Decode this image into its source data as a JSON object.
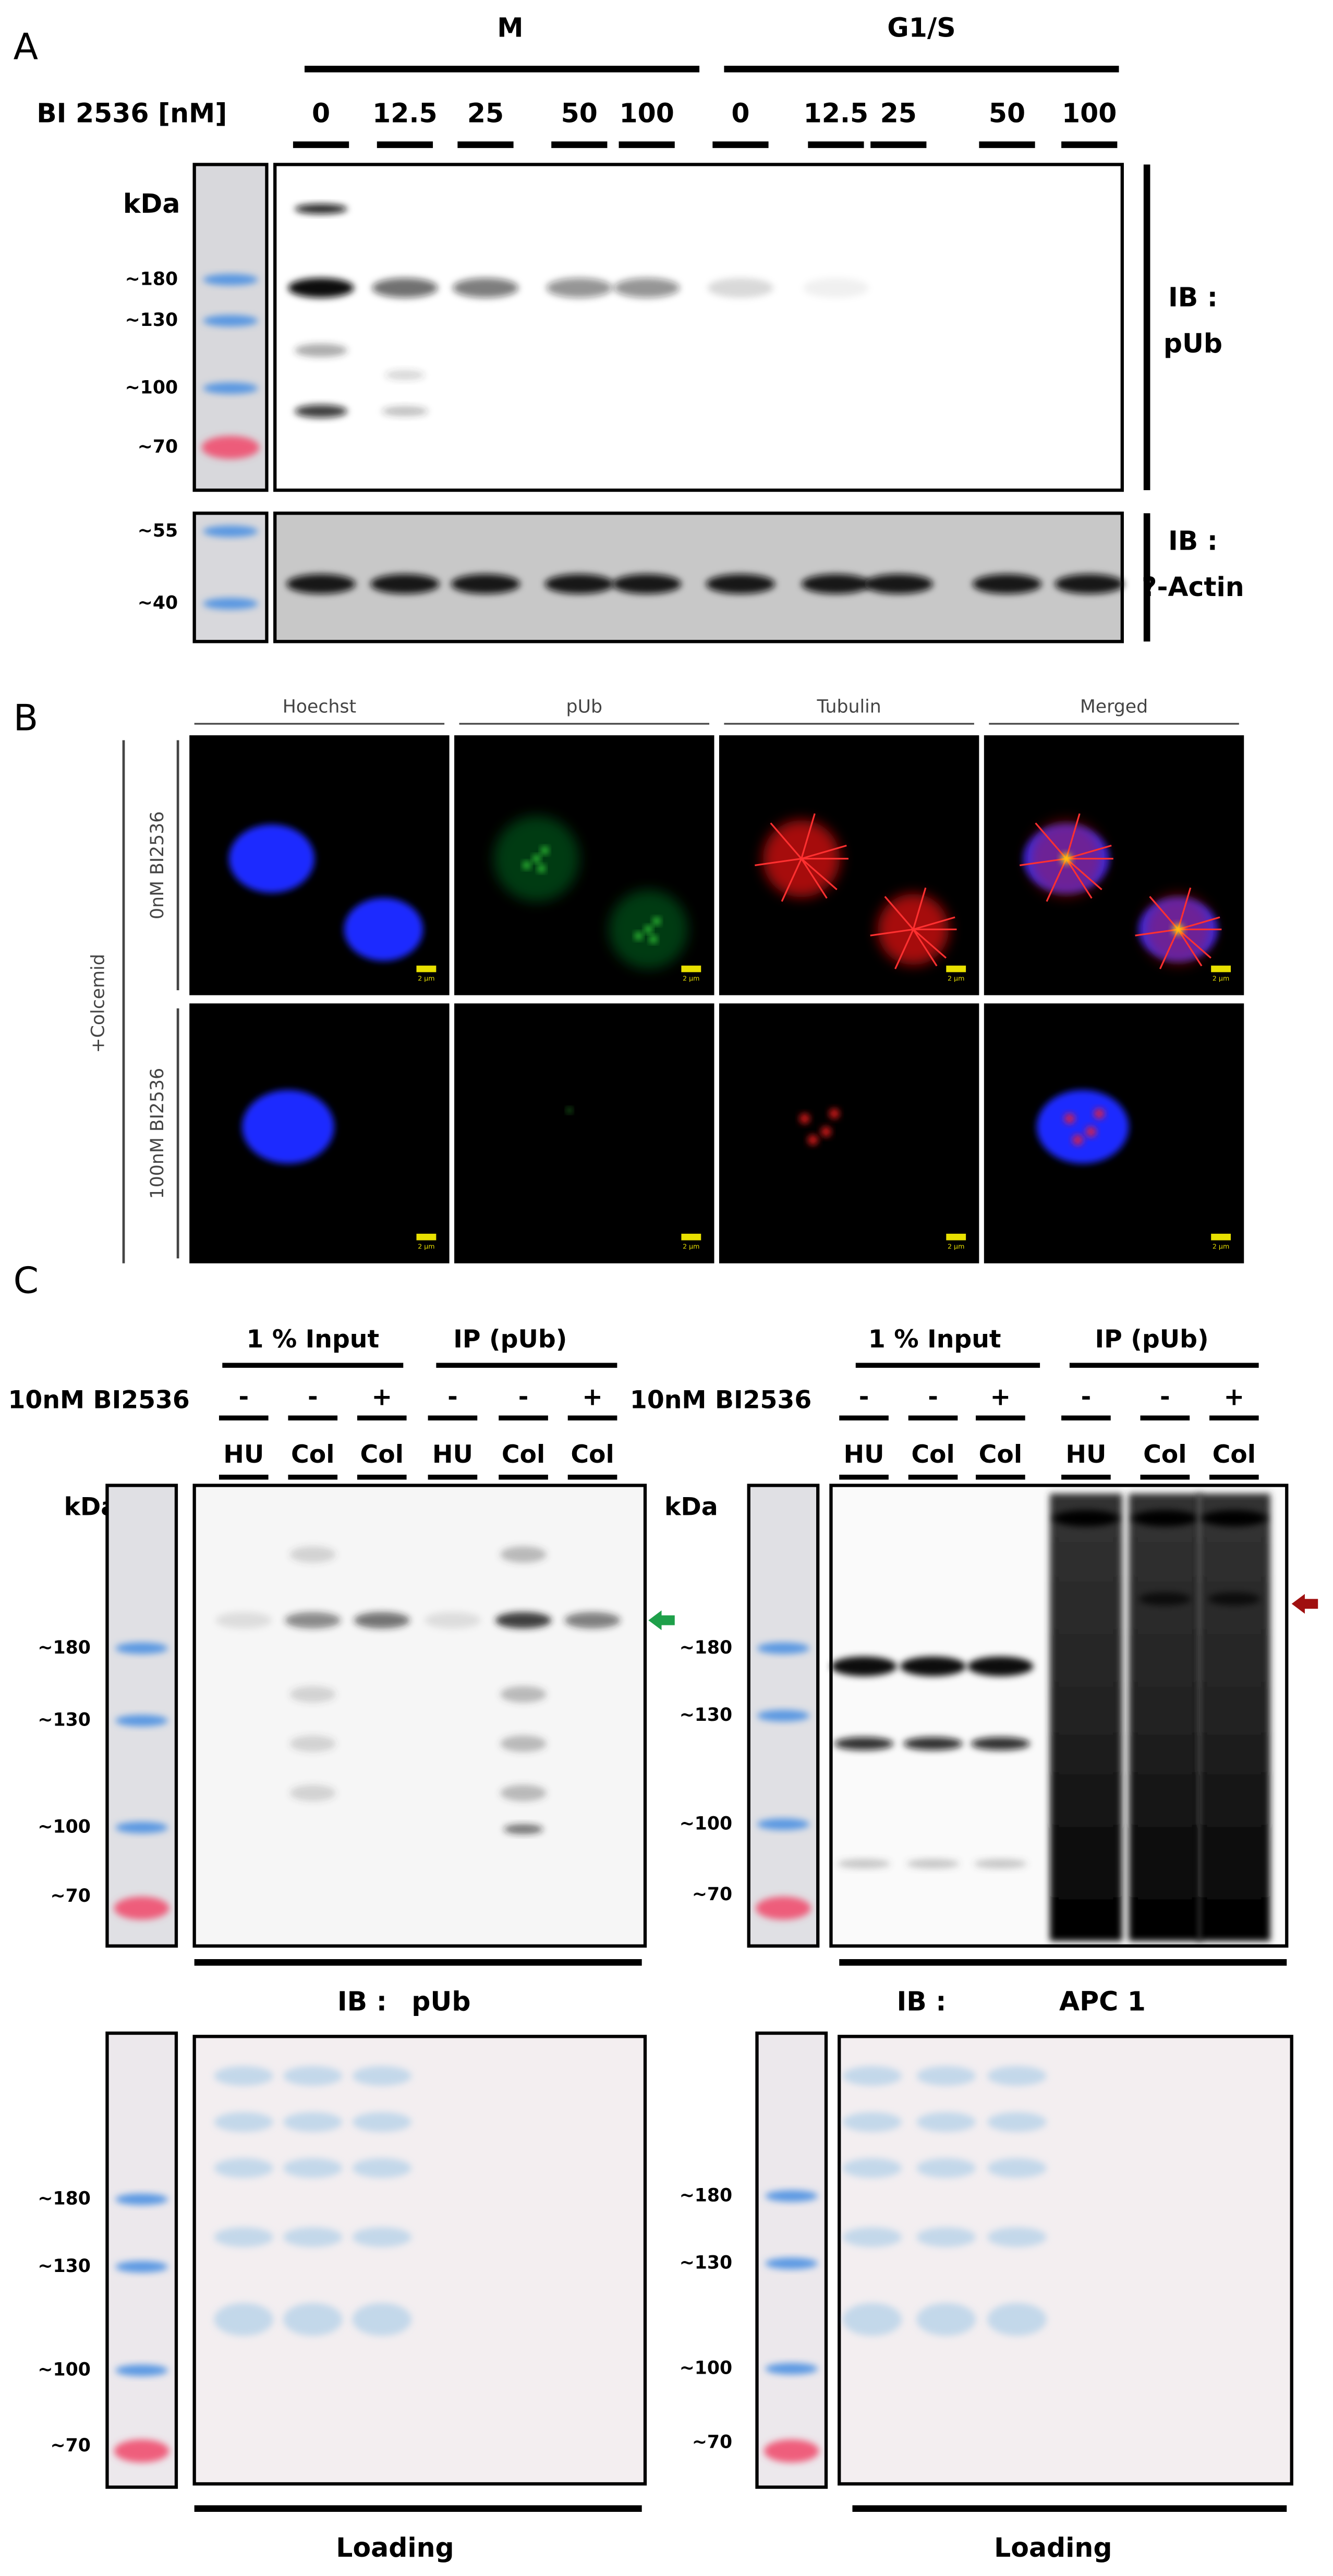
{
  "panel_a": {
    "label": "A",
    "groups": [
      "M",
      "G1/S"
    ],
    "treatment": "BI 2536 [nM]",
    "doses": [
      "0",
      "12.5",
      "25",
      "50",
      "100",
      "0",
      "12.5",
      "25",
      "50",
      "100"
    ],
    "kda": "kDa",
    "markers_top": [
      "~180",
      "~130",
      "~100",
      "~70"
    ],
    "markers_bottom": [
      "~55",
      "~40"
    ],
    "blot_top": {
      "ib": "IB :",
      "target": "pUb"
    },
    "blot_bottom": {
      "ib": "IB :",
      "target": "?-Actin"
    }
  },
  "panel_b": {
    "label": "B",
    "channels": [
      "Hoechst",
      "pUb",
      "Tubulin",
      "Merged"
    ],
    "treatment": "+Colcemid",
    "rows": [
      "0nM BI2536",
      "100nM BI2536"
    ],
    "scale_bar": "2 μm"
  },
  "panel_c": {
    "label": "C",
    "blots": [
      {
        "groups": [
          "1 % Input",
          "IP (pUb)"
        ],
        "treatment": "10nM BI2536",
        "signs": [
          "-",
          "-",
          "+",
          "-",
          "-",
          "+"
        ],
        "lanes": [
          "HU",
          "Col",
          "Col",
          "HU",
          "Col",
          "Col"
        ],
        "kda": "kDa",
        "markers": [
          "~180",
          "~130",
          "~100",
          "~70"
        ],
        "ib": "IB :",
        "target": "pUb"
      },
      {
        "groups": [
          "1 % Input",
          "IP (pUb)"
        ],
        "treatment": "10nM BI2536",
        "signs": [
          "-",
          "-",
          "+",
          "-",
          "-",
          "+"
        ],
        "lanes": [
          "HU",
          "Col",
          "Col",
          "HU",
          "Col",
          "Col"
        ],
        "kda": "kDa",
        "markers": [
          "~180",
          "~130",
          "~100",
          "~70"
        ],
        "ib": "IB :",
        "target": "APC 1"
      }
    ],
    "loading": [
      {
        "markers": [
          "~180",
          "~130",
          "~100",
          "~70"
        ],
        "label": "Loading"
      },
      {
        "markers": [
          "~180",
          "~130",
          "~100",
          "~70"
        ],
        "label": "Loading"
      }
    ]
  }
}
